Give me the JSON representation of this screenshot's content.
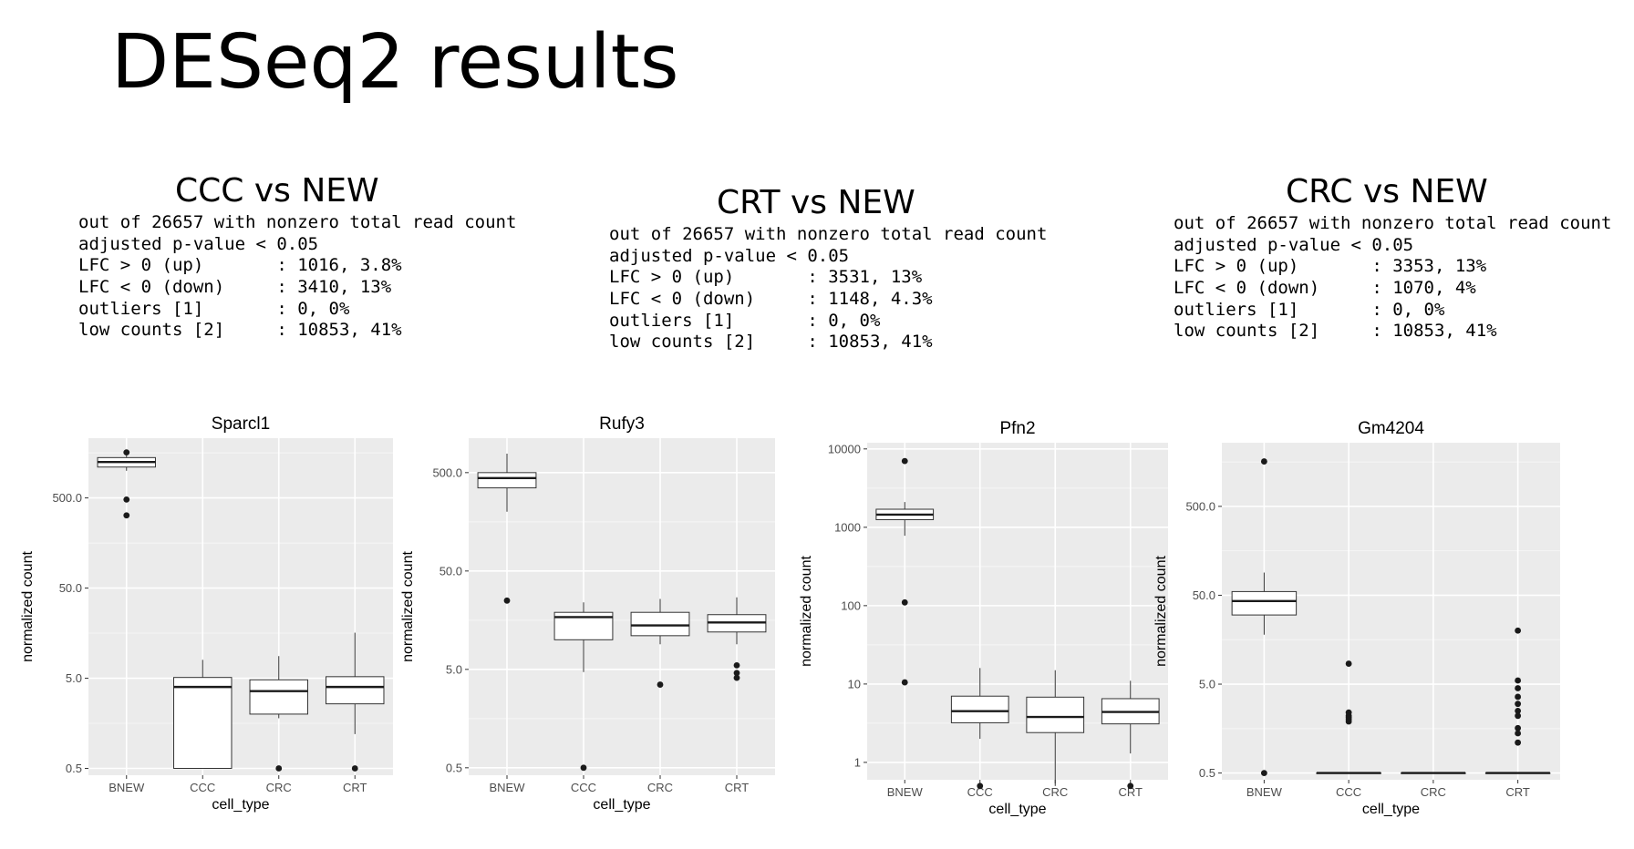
{
  "slide": {
    "title": "DESeq2 results"
  },
  "summaries": [
    {
      "title": "CCC vs NEW",
      "lines": [
        "out of 26657 with nonzero total read count",
        "adjusted p-value < 0.05",
        "LFC > 0 (up)       : 1016, 3.8%",
        "LFC < 0 (down)     : 3410, 13%",
        "outliers [1]       : 0, 0%",
        "low counts [2]     : 10853, 41%"
      ]
    },
    {
      "title": "CRT vs NEW",
      "lines": [
        "out of 26657 with nonzero total read count",
        "adjusted p-value < 0.05",
        "LFC > 0 (up)       : 3531, 13%",
        "LFC < 0 (down)     : 1148, 4.3%",
        "outliers [1]       : 0, 0%",
        "low counts [2]     : 10853, 41%"
      ]
    },
    {
      "title": "CRC vs NEW",
      "lines": [
        "out of 26657 with nonzero total read count",
        "adjusted p-value < 0.05",
        "LFC > 0 (up)       : 3353, 13%",
        "LFC < 0 (down)     : 1070, 4%",
        "outliers [1]       : 0, 0%",
        "low counts [2]     : 10853, 41%"
      ]
    }
  ],
  "chart_data": [
    {
      "type": "box",
      "title": "Sparcl1",
      "xlabel": "cell_type",
      "ylabel": "normalized count",
      "y_scale": "log10",
      "ylim": [
        0.42,
        2300
      ],
      "yticks": [
        0.5,
        5,
        50,
        500
      ],
      "ytick_labels": [
        "0.5",
        "5.0",
        "50.0",
        "500.0"
      ],
      "categories": [
        "BNEW",
        "CCC",
        "CRC",
        "CRT"
      ],
      "boxes": [
        {
          "lower": 1000,
          "q1": 1100,
          "median": 1250,
          "q3": 1400,
          "upper": 1500,
          "outliers": [
            1600,
            480,
            320
          ]
        },
        {
          "lower": 0.5,
          "q1": 0.5,
          "median": 4.0,
          "q3": 5.1,
          "upper": 8.0,
          "outliers": []
        },
        {
          "lower": 1.8,
          "q1": 2.0,
          "median": 3.6,
          "q3": 4.8,
          "upper": 8.8,
          "outliers": [
            0.5
          ]
        },
        {
          "lower": 1.2,
          "q1": 2.6,
          "median": 4.0,
          "q3": 5.2,
          "upper": 16,
          "outliers": [
            0.5
          ]
        }
      ]
    },
    {
      "type": "box",
      "title": "Rufy3",
      "xlabel": "cell_type",
      "ylabel": "normalized count",
      "y_scale": "log10",
      "ylim": [
        0.42,
        1120
      ],
      "yticks": [
        0.5,
        5,
        50,
        500
      ],
      "ytick_labels": [
        "0.5",
        "5.0",
        "50.0",
        "500.0"
      ],
      "categories": [
        "BNEW",
        "CCC",
        "CRC",
        "CRT"
      ],
      "boxes": [
        {
          "lower": 200,
          "q1": 350,
          "median": 440,
          "q3": 500,
          "upper": 780,
          "outliers": [
            25
          ]
        },
        {
          "lower": 4.7,
          "q1": 10,
          "median": 17,
          "q3": 19,
          "upper": 24,
          "outliers": [
            0.5
          ]
        },
        {
          "lower": 9,
          "q1": 11,
          "median": 14,
          "q3": 19,
          "upper": 26,
          "outliers": [
            3.5
          ]
        },
        {
          "lower": 9,
          "q1": 12,
          "median": 15,
          "q3": 18,
          "upper": 27,
          "outliers": [
            5.5,
            4.6,
            4.1
          ]
        }
      ]
    },
    {
      "type": "box",
      "title": "Pfn2",
      "xlabel": "cell_type",
      "ylabel": "normalized count",
      "y_scale": "log10",
      "ylim": [
        0.6,
        12000
      ],
      "yticks": [
        1,
        10,
        100,
        1000,
        10000
      ],
      "ytick_labels": [
        "1",
        "10",
        "100",
        "1000",
        "10000"
      ],
      "categories": [
        "BNEW",
        "CCC",
        "CRC",
        "CRT"
      ],
      "boxes": [
        {
          "lower": 780,
          "q1": 1250,
          "median": 1450,
          "q3": 1700,
          "upper": 2100,
          "outliers": [
            7000,
            110,
            10.5
          ]
        },
        {
          "lower": 2.0,
          "q1": 3.2,
          "median": 4.5,
          "q3": 7.0,
          "upper": 16,
          "outliers": [
            0.5
          ]
        },
        {
          "lower": 0.5,
          "q1": 2.4,
          "median": 3.8,
          "q3": 6.8,
          "upper": 15,
          "outliers": []
        },
        {
          "lower": 1.3,
          "q1": 3.1,
          "median": 4.4,
          "q3": 6.5,
          "upper": 11,
          "outliers": [
            0.5
          ]
        }
      ]
    },
    {
      "type": "box",
      "title": "Gm4204",
      "xlabel": "cell_type",
      "ylabel": "normalized count",
      "y_scale": "log10",
      "ylim": [
        0.42,
        2600
      ],
      "yticks": [
        0.5,
        5,
        50,
        500
      ],
      "ytick_labels": [
        "0.5",
        "5.0",
        "50.0",
        "500.0"
      ],
      "categories": [
        "BNEW",
        "CCC",
        "CRC",
        "CRT"
      ],
      "boxes": [
        {
          "lower": 18,
          "q1": 30,
          "median": 43,
          "q3": 55,
          "upper": 90,
          "outliers": [
            1600,
            0.5
          ]
        },
        {
          "lower": 0.5,
          "q1": 0.5,
          "median": 0.5,
          "q3": 0.5,
          "upper": 0.5,
          "outliers": [
            8.5,
            2.4,
            2.2,
            2.1,
            2.0,
            1.9
          ]
        },
        {
          "lower": 0.5,
          "q1": 0.5,
          "median": 0.5,
          "q3": 0.5,
          "upper": 0.5,
          "outliers": []
        },
        {
          "lower": 0.5,
          "q1": 0.5,
          "median": 0.5,
          "q3": 0.5,
          "upper": 0.5,
          "outliers": [
            20,
            5.5,
            4.5,
            3.6,
            3.0,
            2.5,
            2.2,
            1.6,
            1.4,
            1.1
          ]
        }
      ]
    }
  ]
}
